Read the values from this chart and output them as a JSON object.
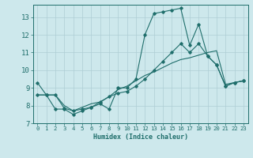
{
  "title": "",
  "xlabel": "Humidex (Indice chaleur)",
  "xlim": [
    -0.5,
    23.5
  ],
  "ylim": [
    7,
    13.7
  ],
  "yticks": [
    7,
    8,
    9,
    10,
    11,
    12,
    13
  ],
  "xticks": [
    0,
    1,
    2,
    3,
    4,
    5,
    6,
    7,
    8,
    9,
    10,
    11,
    12,
    13,
    14,
    15,
    16,
    17,
    18,
    19,
    20,
    21,
    22,
    23
  ],
  "bg_color": "#cde8ec",
  "grid_color": "#aecdd4",
  "line_color": "#1f6e6b",
  "series1_x": [
    0,
    1,
    2,
    3,
    4,
    5,
    6,
    7,
    8,
    9,
    10,
    11,
    12,
    13,
    14,
    15,
    16,
    17,
    18,
    19,
    20,
    21,
    22,
    23
  ],
  "series1_y": [
    9.3,
    8.6,
    7.8,
    7.8,
    7.5,
    7.7,
    7.9,
    8.1,
    7.8,
    9.0,
    9.0,
    9.5,
    12.0,
    13.2,
    13.3,
    13.4,
    13.5,
    11.4,
    12.6,
    10.8,
    10.3,
    9.1,
    9.3,
    9.4
  ],
  "series2_x": [
    0,
    1,
    2,
    3,
    4,
    5,
    6,
    7,
    8,
    9,
    10,
    11,
    12,
    13,
    14,
    15,
    16,
    17,
    18,
    19,
    20,
    21,
    22,
    23
  ],
  "series2_y": [
    8.6,
    8.6,
    8.6,
    7.85,
    7.7,
    7.8,
    7.9,
    8.2,
    8.5,
    8.7,
    8.8,
    9.1,
    9.5,
    10.0,
    10.5,
    11.0,
    11.5,
    11.0,
    11.5,
    10.8,
    10.3,
    9.1,
    9.3,
    9.4
  ],
  "series3_x": [
    0,
    1,
    2,
    3,
    4,
    5,
    6,
    7,
    8,
    9,
    10,
    11,
    12,
    13,
    14,
    15,
    16,
    17,
    18,
    19,
    20,
    21,
    22,
    23
  ],
  "series3_y": [
    8.6,
    8.6,
    8.6,
    8.0,
    7.7,
    7.9,
    8.1,
    8.2,
    8.5,
    8.9,
    9.1,
    9.4,
    9.7,
    9.9,
    10.15,
    10.4,
    10.6,
    10.7,
    10.85,
    11.0,
    11.1,
    9.2,
    9.3,
    9.4
  ]
}
